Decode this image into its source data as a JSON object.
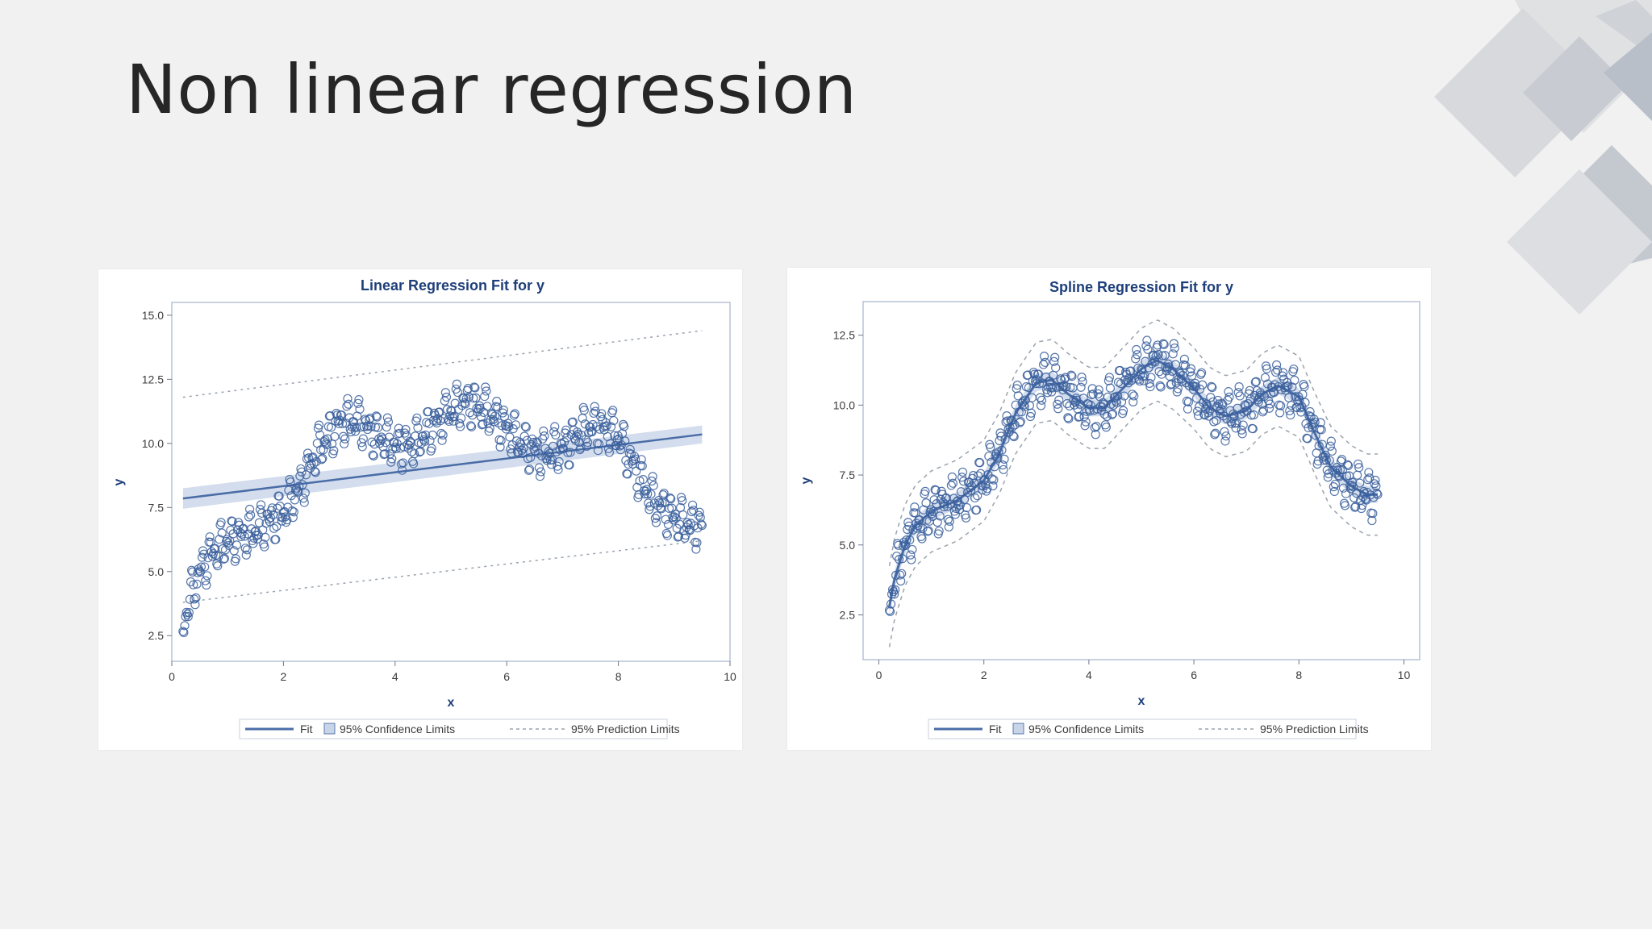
{
  "slide": {
    "title": "Non linear regression"
  },
  "colors": {
    "background": "#f1f1f2",
    "title": "#262626",
    "fit": "#4a6da7",
    "marker": "#3a5f9c",
    "band": "#8ea6cc",
    "prediction": "#9aa3ad"
  },
  "chart_data": [
    {
      "type": "scatter",
      "title": "Linear Regression Fit for y",
      "xlabel": "x",
      "ylabel": "y",
      "xlim": [
        0,
        10
      ],
      "ylim": [
        1.5,
        15.5
      ],
      "xticks": [
        "0",
        "2",
        "4",
        "6",
        "8",
        "10"
      ],
      "yticks": [
        "2.5",
        "5.0",
        "7.5",
        "10.0",
        "12.5",
        "15.0"
      ],
      "x_start": 0.2,
      "x_end": 9.5,
      "fit_line": {
        "x": [
          0.2,
          9.5
        ],
        "y": [
          7.85,
          10.35
        ]
      },
      "confidence_limits": {
        "x": [
          0.2,
          9.5
        ],
        "lower": [
          7.45,
          10.0
        ],
        "upper": [
          8.25,
          10.7
        ]
      },
      "prediction_limits": {
        "x": [
          0.2,
          9.5
        ],
        "lower": [
          3.8,
          6.2
        ],
        "upper": [
          11.8,
          14.4
        ]
      },
      "legend": [
        "Fit",
        "95% Confidence Limits",
        "95% Prediction Limits"
      ],
      "legend_position": "bottom",
      "grid": false
    },
    {
      "type": "scatter",
      "title": "Spline Regression Fit for y",
      "xlabel": "x",
      "ylabel": "y",
      "xlim": [
        -0.3,
        10.3
      ],
      "ylim": [
        0.9,
        13.7
      ],
      "xticks": [
        "0",
        "2",
        "4",
        "6",
        "8",
        "10"
      ],
      "yticks": [
        "2.5",
        "5.0",
        "7.5",
        "10.0",
        "12.5"
      ],
      "x_start": 0.2,
      "x_end": 9.5,
      "fit_curve": {
        "x": [
          0.2,
          0.3,
          0.5,
          0.7,
          1.0,
          1.5,
          2.0,
          2.3,
          2.6,
          3.0,
          3.3,
          3.6,
          4.0,
          4.3,
          4.6,
          5.0,
          5.3,
          5.6,
          6.0,
          6.3,
          6.6,
          7.0,
          7.3,
          7.6,
          8.0,
          8.3,
          8.6,
          9.0,
          9.3,
          9.5
        ],
        "y": [
          2.8,
          3.8,
          5.0,
          5.7,
          6.2,
          6.6,
          7.3,
          8.3,
          9.7,
          10.8,
          10.9,
          10.4,
          9.9,
          9.9,
          10.5,
          11.3,
          11.6,
          11.3,
          10.6,
          9.9,
          9.6,
          9.8,
          10.4,
          10.7,
          10.3,
          9.0,
          7.8,
          7.1,
          6.8,
          6.8
        ]
      },
      "confidence_band_halfwidth": 0.3,
      "prediction_band_halfwidth": 1.45,
      "legend": [
        "Fit",
        "95% Confidence Limits",
        "95% Prediction Limits"
      ],
      "legend_position": "bottom",
      "grid": false
    }
  ]
}
